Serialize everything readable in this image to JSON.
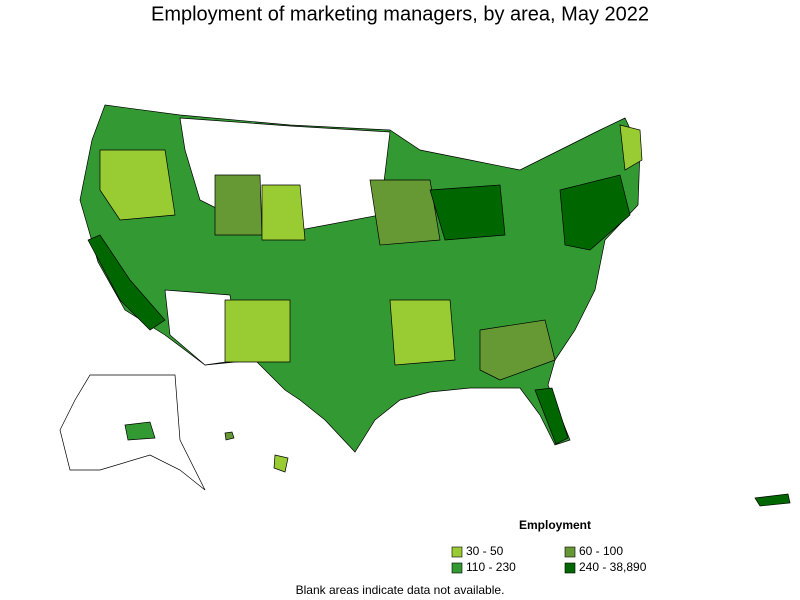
{
  "title": "Employment of marketing managers, by area, May 2022",
  "legend": {
    "title": "Employment",
    "items": [
      {
        "label": "30 - 50",
        "color": "#99cc33"
      },
      {
        "label": "60 - 100",
        "color": "#669933"
      },
      {
        "label": "110 - 230",
        "color": "#339933"
      },
      {
        "label": "240 - 38,890",
        "color": "#006600"
      }
    ]
  },
  "footnote": "Blank areas indicate data not available."
}
